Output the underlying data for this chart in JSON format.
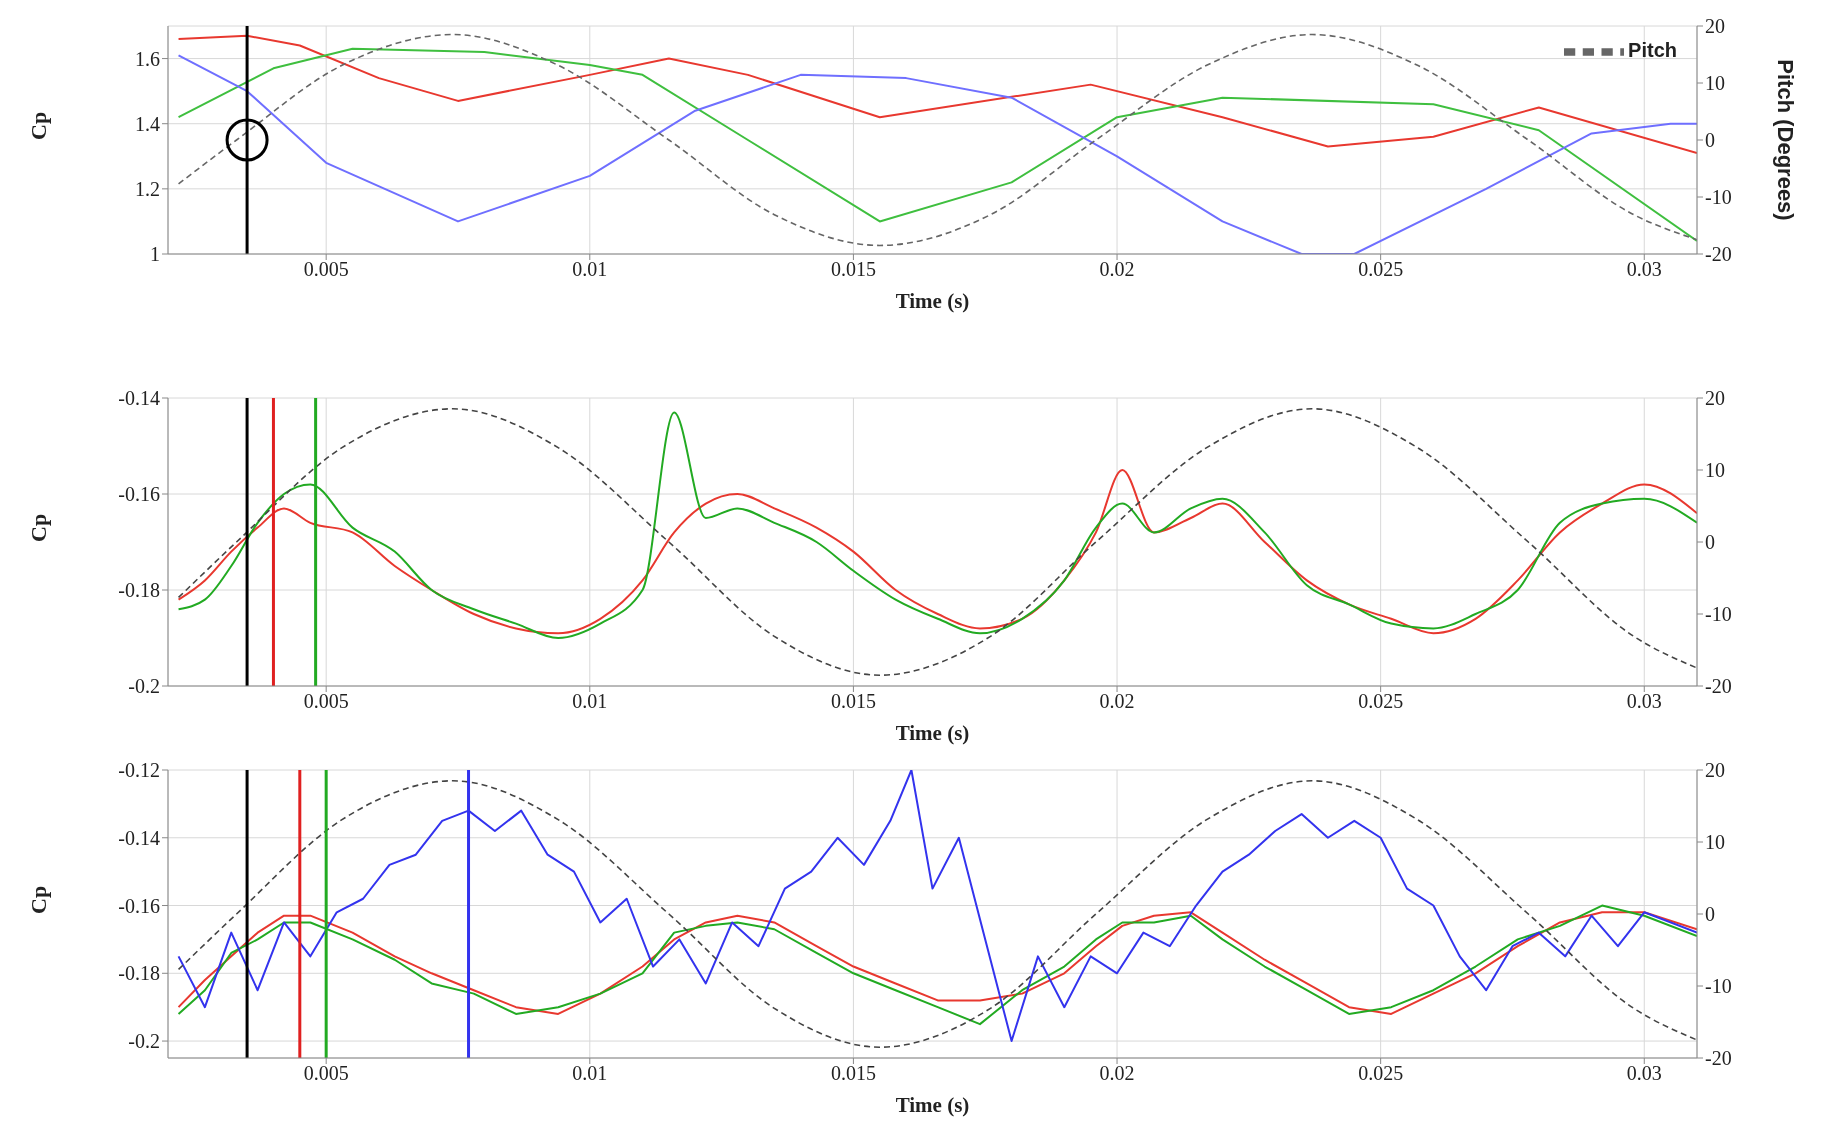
{
  "chart_data": [
    {
      "type": "line",
      "xlabel": "Time (s)",
      "ylabel": "Cp",
      "y2label": "Pitch (Degrees)",
      "xlim": [
        0.002,
        0.031
      ],
      "xticks": [
        0.005,
        0.01,
        0.015,
        0.02,
        0.025,
        0.03
      ],
      "ylim": [
        1,
        1.7
      ],
      "yticks": [
        1,
        1.2,
        1.4,
        1.6
      ],
      "y2lim": [
        -20,
        20
      ],
      "y2ticks": [
        -20,
        -10,
        0,
        10,
        20
      ],
      "grid": true,
      "legend": "top right",
      "marker": "none",
      "series": [
        {
          "color": "#e8382f",
          "x": [
            0.0022,
            0.0035,
            0.0045,
            0.006,
            0.0075,
            0.01,
            0.0115,
            0.013,
            0.0155,
            0.0195,
            0.022,
            0.024,
            0.026,
            0.028,
            0.031
          ],
          "values": [
            1.66,
            1.67,
            1.64,
            1.54,
            1.47,
            1.55,
            1.6,
            1.55,
            1.42,
            1.52,
            1.42,
            1.33,
            1.36,
            1.45,
            1.31
          ]
        },
        {
          "color": "#3fbf3f",
          "x": [
            0.0022,
            0.004,
            0.0055,
            0.008,
            0.01,
            0.011,
            0.013,
            0.0155,
            0.018,
            0.02,
            0.022,
            0.026,
            0.028,
            0.031
          ],
          "values": [
            1.42,
            1.57,
            1.63,
            1.62,
            1.58,
            1.55,
            1.35,
            1.1,
            1.22,
            1.42,
            1.48,
            1.46,
            1.38,
            1.04
          ]
        },
        {
          "color": "#6f6fff",
          "x": [
            0.0022,
            0.0035,
            0.005,
            0.0075,
            0.01,
            0.012,
            0.014,
            0.016,
            0.018,
            0.02,
            0.022,
            0.0235,
            0.0245,
            0.027,
            0.029,
            0.0305,
            0.031
          ],
          "values": [
            1.61,
            1.5,
            1.28,
            1.1,
            1.24,
            1.44,
            1.55,
            1.54,
            1.48,
            1.3,
            1.1,
            1.0,
            1.0,
            1.2,
            1.37,
            1.4,
            1.4
          ]
        },
        {
          "name": "Pitch",
          "color": "#666666",
          "axis": "y2",
          "line_style": "dashed",
          "x": [
            0.0022,
            0.0033,
            0.0053,
            0.0074,
            0.0094,
            0.0115,
            0.0135,
            0.0155,
            0.0176,
            0.0196,
            0.0217,
            0.0237,
            0.0257,
            0.0278,
            0.0298,
            0.031
          ],
          "values": [
            -7.7,
            0,
            13.1,
            18.5,
            13.1,
            0,
            -13.1,
            -18.5,
            -13.1,
            0,
            13.1,
            18.5,
            13.1,
            0,
            -13.1,
            -17.5
          ]
        }
      ],
      "ref_lines": [
        {
          "axis": "x",
          "value": 0.0035,
          "color": "#000000"
        }
      ]
    },
    {
      "type": "line",
      "xlabel": "Time (s)",
      "ylabel": "Cp",
      "xlim": [
        0.002,
        0.031
      ],
      "xticks": [
        0.005,
        0.01,
        0.015,
        0.02,
        0.025,
        0.03
      ],
      "ylim": [
        -0.2,
        -0.14
      ],
      "yticks": [
        -0.2,
        -0.18,
        -0.16,
        -0.14
      ],
      "y2lim": [
        -20,
        20
      ],
      "y2ticks": [
        -20,
        -10,
        0,
        10,
        20
      ],
      "grid": true,
      "marker": "none",
      "series": [
        {
          "color": "#e8382f",
          "x": [
            0.0022,
            0.0027,
            0.0032,
            0.0037,
            0.0042,
            0.0047,
            0.0055,
            0.0063,
            0.007,
            0.0078,
            0.0086,
            0.0094,
            0.0102,
            0.011,
            0.0116,
            0.0122,
            0.0128,
            0.0135,
            0.0143,
            0.015,
            0.0158,
            0.0166,
            0.0174,
            0.0182,
            0.019,
            0.0196,
            0.0201,
            0.0207,
            0.0214,
            0.022,
            0.0228,
            0.0236,
            0.0244,
            0.0252,
            0.026,
            0.0268,
            0.0276,
            0.0284,
            0.0292,
            0.03,
            0.031
          ],
          "values": [
            -0.182,
            -0.178,
            -0.172,
            -0.167,
            -0.163,
            -0.166,
            -0.168,
            -0.175,
            -0.18,
            -0.185,
            -0.188,
            -0.189,
            -0.186,
            -0.178,
            -0.168,
            -0.162,
            -0.16,
            -0.163,
            -0.167,
            -0.172,
            -0.18,
            -0.185,
            -0.188,
            -0.186,
            -0.178,
            -0.168,
            -0.155,
            -0.168,
            -0.165,
            -0.162,
            -0.17,
            -0.178,
            -0.183,
            -0.186,
            -0.189,
            -0.186,
            -0.178,
            -0.168,
            -0.162,
            -0.158,
            -0.164
          ]
        },
        {
          "color": "#22aa22",
          "x": [
            0.0022,
            0.0027,
            0.0032,
            0.0037,
            0.0042,
            0.0047,
            0.0055,
            0.0063,
            0.007,
            0.0078,
            0.0086,
            0.0094,
            0.0102,
            0.011,
            0.0116,
            0.0122,
            0.0128,
            0.0135,
            0.0143,
            0.015,
            0.0158,
            0.0166,
            0.0174,
            0.0182,
            0.019,
            0.0196,
            0.0201,
            0.0207,
            0.0214,
            0.022,
            0.0228,
            0.0236,
            0.0244,
            0.0252,
            0.026,
            0.0268,
            0.0276,
            0.0284,
            0.0292,
            0.03,
            0.031
          ],
          "values": [
            -0.184,
            -0.182,
            -0.175,
            -0.166,
            -0.16,
            -0.158,
            -0.167,
            -0.172,
            -0.18,
            -0.184,
            -0.187,
            -0.19,
            -0.187,
            -0.18,
            -0.143,
            -0.165,
            -0.163,
            -0.166,
            -0.17,
            -0.176,
            -0.182,
            -0.186,
            -0.189,
            -0.186,
            -0.178,
            -0.167,
            -0.162,
            -0.168,
            -0.163,
            -0.161,
            -0.168,
            -0.179,
            -0.183,
            -0.187,
            -0.188,
            -0.185,
            -0.18,
            -0.166,
            -0.162,
            -0.161,
            -0.166
          ]
        },
        {
          "color": "#444444",
          "axis": "y2",
          "line_style": "dashed",
          "x": [
            0.0022,
            0.0033,
            0.0053,
            0.0074,
            0.0094,
            0.0115,
            0.0135,
            0.0155,
            0.0176,
            0.0196,
            0.0217,
            0.0237,
            0.0257,
            0.0278,
            0.0298,
            0.031
          ],
          "values": [
            -7.7,
            0,
            13.1,
            18.5,
            13.1,
            0,
            -13.1,
            -18.5,
            -13.1,
            0,
            13.1,
            18.5,
            13.1,
            0,
            -13.1,
            -17.5
          ]
        }
      ],
      "ref_lines": [
        {
          "axis": "x",
          "value": 0.0035,
          "color": "#000000"
        },
        {
          "axis": "x",
          "value": 0.004,
          "color": "#e02020"
        },
        {
          "axis": "x",
          "value": 0.0048,
          "color": "#22aa22"
        }
      ]
    },
    {
      "type": "line",
      "xlabel": "Time (s)",
      "ylabel": "Cp",
      "xlim": [
        0.002,
        0.031
      ],
      "xticks": [
        0.005,
        0.01,
        0.015,
        0.02,
        0.025,
        0.03
      ],
      "ylim": [
        -0.205,
        -0.12
      ],
      "yticks": [
        -0.2,
        -0.18,
        -0.16,
        -0.14,
        -0.12
      ],
      "y2lim": [
        -20,
        20
      ],
      "y2ticks": [
        -20,
        -10,
        0,
        10,
        20
      ],
      "grid": true,
      "marker": "none",
      "series": [
        {
          "color": "#e8382f",
          "x": [
            0.0022,
            0.0027,
            0.0032,
            0.0037,
            0.0042,
            0.0047,
            0.0055,
            0.0063,
            0.007,
            0.0078,
            0.0086,
            0.0094,
            0.0102,
            0.011,
            0.0116,
            0.0122,
            0.0128,
            0.0135,
            0.0143,
            0.015,
            0.0158,
            0.0166,
            0.0174,
            0.0182,
            0.019,
            0.0196,
            0.0201,
            0.0207,
            0.0214,
            0.022,
            0.0228,
            0.0236,
            0.0244,
            0.0252,
            0.026,
            0.0268,
            0.0276,
            0.0284,
            0.0292,
            0.03,
            0.031
          ],
          "values": [
            -0.19,
            -0.182,
            -0.175,
            -0.168,
            -0.163,
            -0.163,
            -0.168,
            -0.175,
            -0.18,
            -0.185,
            -0.19,
            -0.192,
            -0.186,
            -0.178,
            -0.17,
            -0.165,
            -0.163,
            -0.165,
            -0.172,
            -0.178,
            -0.183,
            -0.188,
            -0.188,
            -0.186,
            -0.18,
            -0.172,
            -0.166,
            -0.163,
            -0.162,
            -0.168,
            -0.176,
            -0.183,
            -0.19,
            -0.192,
            -0.186,
            -0.18,
            -0.172,
            -0.165,
            -0.162,
            -0.162,
            -0.167
          ]
        },
        {
          "color": "#22aa22",
          "x": [
            0.0022,
            0.0027,
            0.0032,
            0.0037,
            0.0042,
            0.0047,
            0.0055,
            0.0063,
            0.007,
            0.0078,
            0.0086,
            0.0094,
            0.0102,
            0.011,
            0.0116,
            0.0122,
            0.0128,
            0.0135,
            0.0143,
            0.015,
            0.0158,
            0.0166,
            0.0174,
            0.0182,
            0.019,
            0.0196,
            0.0201,
            0.0207,
            0.0214,
            0.022,
            0.0228,
            0.0236,
            0.0244,
            0.0252,
            0.026,
            0.0268,
            0.0276,
            0.0284,
            0.0292,
            0.03,
            0.031
          ],
          "values": [
            -0.192,
            -0.185,
            -0.174,
            -0.17,
            -0.165,
            -0.165,
            -0.17,
            -0.176,
            -0.183,
            -0.186,
            -0.192,
            -0.19,
            -0.186,
            -0.18,
            -0.168,
            -0.166,
            -0.165,
            -0.167,
            -0.174,
            -0.18,
            -0.185,
            -0.19,
            -0.195,
            -0.185,
            -0.178,
            -0.17,
            -0.165,
            -0.165,
            -0.163,
            -0.17,
            -0.178,
            -0.185,
            -0.192,
            -0.19,
            -0.185,
            -0.178,
            -0.17,
            -0.166,
            -0.16,
            -0.163,
            -0.169
          ]
        },
        {
          "color": "#3333ee",
          "x": [
            0.0022,
            0.0027,
            0.0032,
            0.0037,
            0.0042,
            0.0047,
            0.0052,
            0.0057,
            0.0062,
            0.0067,
            0.0072,
            0.0077,
            0.0082,
            0.0087,
            0.0092,
            0.0097,
            0.0102,
            0.0107,
            0.0112,
            0.0117,
            0.0122,
            0.0127,
            0.0132,
            0.0137,
            0.0142,
            0.0147,
            0.0152,
            0.0157,
            0.0161,
            0.0165,
            0.017,
            0.0175,
            0.018,
            0.0185,
            0.019,
            0.0195,
            0.02,
            0.0205,
            0.021,
            0.0215,
            0.022,
            0.0225,
            0.023,
            0.0235,
            0.024,
            0.0245,
            0.025,
            0.0255,
            0.026,
            0.0265,
            0.027,
            0.0275,
            0.028,
            0.0285,
            0.029,
            0.0295,
            0.03,
            0.031
          ],
          "values": [
            -0.175,
            -0.19,
            -0.168,
            -0.185,
            -0.165,
            -0.175,
            -0.162,
            -0.158,
            -0.148,
            -0.145,
            -0.135,
            -0.132,
            -0.138,
            -0.132,
            -0.145,
            -0.15,
            -0.165,
            -0.158,
            -0.178,
            -0.17,
            -0.183,
            -0.165,
            -0.172,
            -0.155,
            -0.15,
            -0.14,
            -0.148,
            -0.135,
            -0.12,
            -0.155,
            -0.14,
            -0.17,
            -0.2,
            -0.175,
            -0.19,
            -0.175,
            -0.18,
            -0.168,
            -0.172,
            -0.16,
            -0.15,
            -0.145,
            -0.138,
            -0.133,
            -0.14,
            -0.135,
            -0.14,
            -0.155,
            -0.16,
            -0.175,
            -0.185,
            -0.172,
            -0.168,
            -0.175,
            -0.163,
            -0.172,
            -0.162,
            -0.168
          ]
        },
        {
          "color": "#444444",
          "axis": "y2",
          "line_style": "dashed",
          "x": [
            0.0022,
            0.0033,
            0.0053,
            0.0074,
            0.0094,
            0.0115,
            0.0135,
            0.0155,
            0.0176,
            0.0196,
            0.0217,
            0.0237,
            0.0257,
            0.0278,
            0.0298,
            0.031
          ],
          "values": [
            -7.7,
            0,
            13.1,
            18.5,
            13.1,
            0,
            -13.1,
            -18.5,
            -13.1,
            0,
            13.1,
            18.5,
            13.1,
            0,
            -13.1,
            -17.5
          ]
        }
      ],
      "ref_lines": [
        {
          "axis": "x",
          "value": 0.0035,
          "color": "#000000"
        },
        {
          "axis": "x",
          "value": 0.0045,
          "color": "#e02020"
        },
        {
          "axis": "x",
          "value": 0.005,
          "color": "#22aa22"
        },
        {
          "axis": "x",
          "value": 0.0077,
          "color": "#3333ee"
        }
      ]
    }
  ]
}
